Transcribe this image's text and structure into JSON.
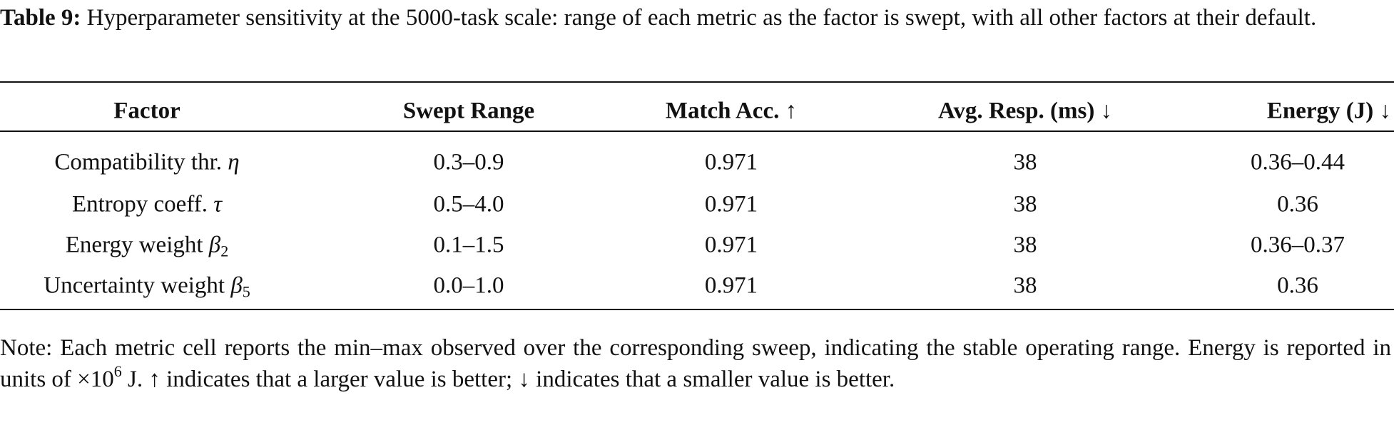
{
  "caption": {
    "label": "Table 9:",
    "text": "Hyperparameter sensitivity at the 5000-task scale: range of each metric as the factor is swept, with all other factors at their default."
  },
  "table": {
    "header": [
      "Factor",
      "Swept Range",
      "Match Acc. ↑",
      "Avg. Resp. (ms) ↓",
      "Energy (J) ↓"
    ],
    "rows": [
      {
        "factor": {
          "label": "Compatibility thr.",
          "symbol": "η"
        },
        "swept_range": "0.3–0.9",
        "match_acc": "0.971",
        "avg_resp": "38",
        "energy": "0.36–0.44"
      },
      {
        "factor": {
          "label": "Entropy coeff.",
          "symbol": "τ"
        },
        "swept_range": "0.5–4.0",
        "match_acc": "0.971",
        "avg_resp": "38",
        "energy": "0.36"
      },
      {
        "factor": {
          "label": "Energy weight",
          "symbol": "β",
          "subscript": "2"
        },
        "swept_range": "0.1–1.5",
        "match_acc": "0.971",
        "avg_resp": "38",
        "energy": "0.36–0.37"
      },
      {
        "factor": {
          "label": "Uncertainty weight",
          "symbol": "β",
          "subscript": "5"
        },
        "swept_range": "0.0–1.0",
        "match_acc": "0.971",
        "avg_resp": "38",
        "energy": "0.36"
      }
    ]
  },
  "note": {
    "text_before": "Note: Each metric cell reports the min–max observed over the corresponding sweep, indicating the stable operating range. Energy is reported in units of ×10",
    "superscript": "6",
    "text_after": " J. ↑ indicates that a larger value is better; ↓ indicates that a smaller value is better."
  }
}
